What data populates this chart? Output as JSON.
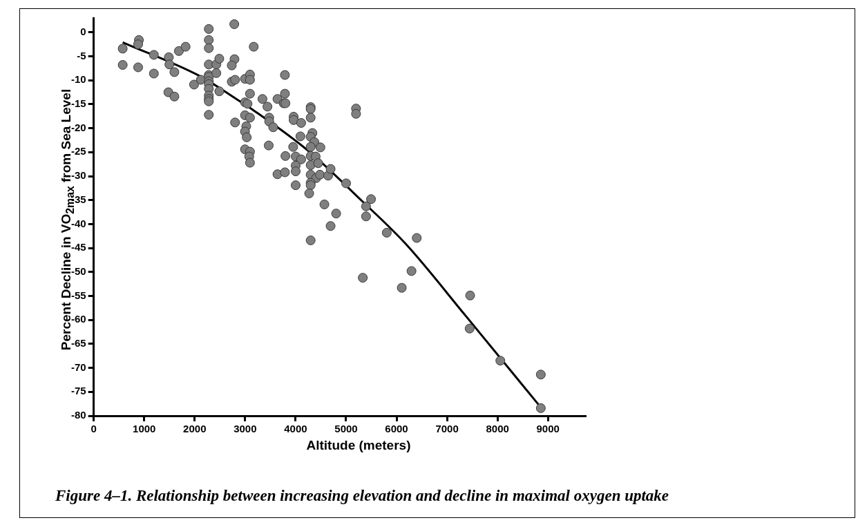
{
  "chart_data": {
    "type": "scatter",
    "xlabel": "Altitude (meters)",
    "ylabel": "Percent Decline in VO$_{2max}$ from Sea Level",
    "annotations": [
      "Figure 4–1.  Relationship between increasing elevation and decline in maximal oxygen uptake"
    ],
    "xlim": [
      0,
      9750
    ],
    "ylim": [
      -80,
      3
    ],
    "xticks": [
      0,
      1000,
      2000,
      3000,
      4000,
      5000,
      6000,
      7000,
      8000,
      9000
    ],
    "yticks": [
      0,
      -5,
      -10,
      -15,
      -20,
      -25,
      -30,
      -35,
      -40,
      -45,
      -50,
      -55,
      -60,
      -65,
      -70,
      -75,
      -80
    ],
    "grid": false,
    "legend": false,
    "marker": "circle",
    "series": [
      {
        "type": "scatter",
        "color": "#7f7f7f",
        "x": [
          574,
          574,
          895,
          880,
          880,
          1192,
          1192,
          1488,
          1499,
          1598,
          1479,
          1598,
          1687,
          1820,
          1988,
          2122,
          2280,
          2280,
          2280,
          2280,
          2280,
          2280,
          2280,
          2280,
          2280,
          2280,
          2280,
          2280,
          2280,
          2429,
          2488,
          2429,
          2488,
          2785,
          2789,
          2735,
          2735,
          2800,
          2800,
          3170,
          2997,
          3096,
          3096,
          3096,
          2997,
          3046,
          2997,
          3096,
          3022,
          2997,
          3032,
          2997,
          3096,
          3081,
          3096,
          3788,
          3343,
          3640,
          3788,
          3764,
          3798,
          3442,
          3477,
          3477,
          3556,
          4298,
          4298,
          4298,
          5197,
          5197,
          3961,
          3961,
          4110,
          4095,
          4332,
          4298,
          4372,
          4491,
          4298,
          3467,
          3951,
          3798,
          4001,
          4110,
          4298,
          4397,
          4298,
          4447,
          4001,
          4001,
          3640,
          3788,
          4298,
          4407,
          4298,
          4298,
          4481,
          4644,
          4693,
          4001,
          4269,
          5000,
          4570,
          4803,
          4693,
          4298,
          5494,
          5396,
          5396,
          5806,
          5331,
          6400,
          6296,
          6103,
          7458,
          7448,
          8056,
          8858,
          8858
        ],
        "values": [
          -3.4,
          -6.8,
          -1.6,
          -2.5,
          -7.3,
          -4.7,
          -8.6,
          -5.2,
          -6.7,
          -8.3,
          -12.5,
          -13.4,
          -3.9,
          -3.0,
          -10.9,
          -9.9,
          0.7,
          -1.6,
          -3.3,
          -6.7,
          -8.9,
          -9.3,
          -10.2,
          -10.8,
          -11.8,
          -13.2,
          -13.9,
          -14.4,
          -17.2,
          -6.7,
          -5.5,
          -8.5,
          -12.3,
          1.7,
          -5.6,
          -6.9,
          -10.3,
          -9.9,
          -18.8,
          -3.0,
          -9.7,
          -8.8,
          -9.9,
          -12.8,
          -14.6,
          -14.9,
          -17.3,
          -17.8,
          -19.6,
          -20.7,
          -21.9,
          -24.4,
          -24.9,
          -25.9,
          -27.2,
          -8.9,
          -13.9,
          -13.9,
          -12.8,
          -14.8,
          -14.8,
          -15.5,
          -17.8,
          -18.6,
          -19.8,
          -15.6,
          -16.0,
          -17.8,
          -15.9,
          -17.0,
          -17.6,
          -18.3,
          -18.9,
          -21.7,
          -21.0,
          -21.8,
          -22.9,
          -24.0,
          -23.9,
          -23.6,
          -23.9,
          -25.8,
          -25.9,
          -26.5,
          -25.8,
          -25.9,
          -27.7,
          -27.3,
          -27.8,
          -29.0,
          -29.6,
          -29.2,
          -29.7,
          -30.4,
          -31.4,
          -31.9,
          -29.7,
          -29.9,
          -28.5,
          -31.9,
          -33.6,
          -31.5,
          -35.9,
          -37.8,
          -40.4,
          -43.4,
          -34.8,
          -36.3,
          -38.4,
          -41.8,
          -51.2,
          -42.9,
          -49.8,
          -53.3,
          -54.9,
          -61.8,
          -68.5,
          -71.4,
          -78.4
        ]
      },
      {
        "type": "line",
        "color": "#000000",
        "marker": "none",
        "line_style": "solid",
        "x": [
          574,
          2132,
          2824,
          3170,
          4258,
          5297,
          6187,
          7374,
          8808
        ],
        "values": [
          -2.1,
          -9.3,
          -13.9,
          -16.3,
          -24.8,
          -35.0,
          -44.2,
          -59.2,
          -77.6
        ]
      }
    ]
  }
}
